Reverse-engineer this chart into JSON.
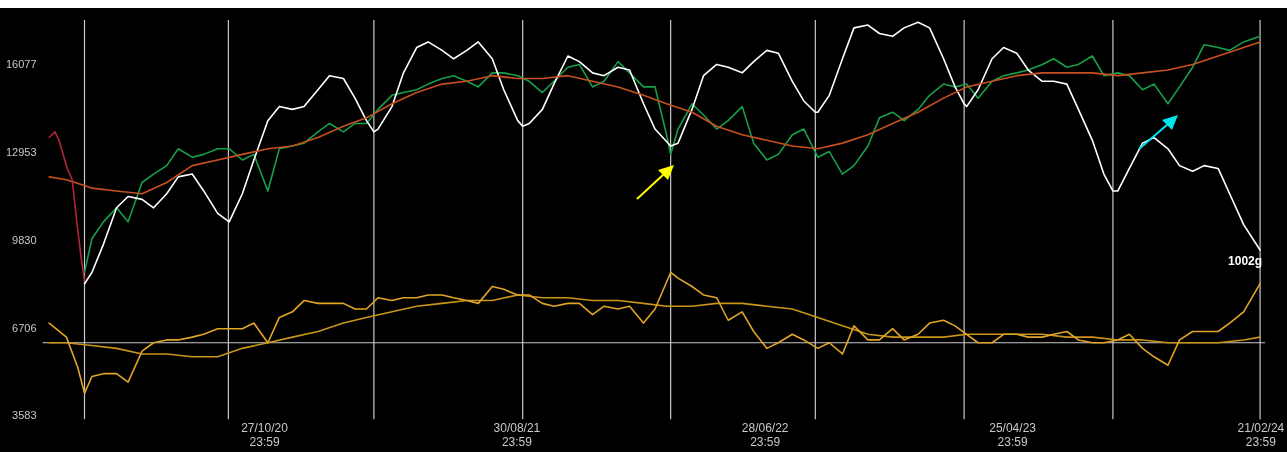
{
  "chart_data": {
    "type": "line",
    "grid": false,
    "legend": false,
    "marker": "none",
    "line_style": "solid",
    "xlim": [
      "2020-02-01",
      "2024-02-27"
    ],
    "xticks": [
      {
        "value": "2020-10-27T23:59",
        "label": "27/10/20 23:59"
      },
      {
        "value": "2021-08-30T23:59",
        "label": "30/08/21 23:59"
      },
      {
        "value": "2022-06-28T23:59",
        "label": "28/06/22 23:59"
      },
      {
        "value": "2023-04-25T23:59",
        "label": "25/04/23 23:59"
      },
      {
        "value": "2024-02-21T23:59",
        "label": "21/02/24 23:59"
      }
    ],
    "ylim": [
      3480,
      17680
    ],
    "yticks": [
      3583,
      6706,
      9830,
      12953,
      16077
    ],
    "ref_lines": [
      {
        "axis": "x",
        "value": "2020-03-23",
        "color": "#c8c8c8"
      },
      {
        "axis": "x",
        "value": "2020-09-14",
        "color": "#c8c8c8"
      },
      {
        "axis": "x",
        "value": "2021-03-10",
        "color": "#c8c8c8"
      },
      {
        "axis": "x",
        "value": "2021-09-07",
        "color": "#c8c8c8"
      },
      {
        "axis": "x",
        "value": "2022-03-06",
        "color": "#c8c8c8"
      },
      {
        "axis": "x",
        "value": "2022-08-29",
        "color": "#c8c8c8"
      },
      {
        "axis": "x",
        "value": "2023-02-26",
        "color": "#c8c8c8"
      },
      {
        "axis": "x",
        "value": "2023-08-26",
        "color": "#c8c8c8"
      },
      {
        "axis": "x",
        "value": "2024-02-21",
        "color": "#c8c8c8"
      },
      {
        "axis": "y",
        "value": 6200,
        "color": "#c8c8c8"
      }
    ],
    "annotations": [
      {
        "text": "1002g",
        "x": "2024-02-21",
        "y": 9100
      }
    ],
    "series": [
      {
        "type": "line",
        "color": "#b0243a",
        "x": [
          "2020-02-09",
          "2020-02-16",
          "2020-02-21",
          "2020-03-02",
          "2020-03-08",
          "2020-03-14",
          "2020-03-19",
          "2020-03-23"
        ],
        "values": [
          13500,
          13700,
          13400,
          12400,
          12000,
          10400,
          9200,
          8400
        ]
      },
      {
        "type": "line",
        "color": "#c8501e",
        "x": [
          "2020-02-09",
          "2020-03-01",
          "2020-04-01",
          "2020-05-01",
          "2020-06-01",
          "2020-07-01",
          "2020-08-01",
          "2020-09-01",
          "2020-10-01",
          "2020-11-01",
          "2020-12-01",
          "2021-01-01",
          "2021-02-01",
          "2021-03-01",
          "2021-04-01",
          "2021-05-01",
          "2021-06-01",
          "2021-07-01",
          "2021-08-01",
          "2021-09-01",
          "2021-10-01",
          "2021-11-01",
          "2021-12-01",
          "2022-01-01",
          "2022-02-01",
          "2022-03-01",
          "2022-04-01",
          "2022-05-01",
          "2022-06-01",
          "2022-07-01",
          "2022-08-01",
          "2022-09-01",
          "2022-10-01",
          "2022-11-01",
          "2022-12-01",
          "2023-01-01",
          "2023-02-01",
          "2023-03-01",
          "2023-04-01",
          "2023-05-01",
          "2023-06-01",
          "2023-07-01",
          "2023-08-01",
          "2023-09-01",
          "2023-10-01",
          "2023-11-01",
          "2023-12-01",
          "2024-01-01",
          "2024-02-01",
          "2024-02-21"
        ],
        "values": [
          12100,
          12000,
          11700,
          11600,
          11500,
          11900,
          12500,
          12700,
          12900,
          13100,
          13200,
          13500,
          13900,
          14200,
          14700,
          15100,
          15400,
          15500,
          15700,
          15600,
          15600,
          15700,
          15500,
          15300,
          15000,
          14700,
          14400,
          13900,
          13600,
          13400,
          13200,
          13100,
          13300,
          13600,
          14000,
          14400,
          14900,
          15300,
          15500,
          15700,
          15800,
          15800,
          15800,
          15700,
          15800,
          15900,
          16100,
          16400,
          16700,
          16900
        ]
      },
      {
        "type": "line",
        "color": "#ffffff",
        "x": [
          "2020-03-23",
          "2020-04-01",
          "2020-04-15",
          "2020-05-01",
          "2020-05-15",
          "2020-06-01",
          "2020-06-15",
          "2020-07-01",
          "2020-07-15",
          "2020-08-01",
          "2020-08-15",
          "2020-09-01",
          "2020-09-15",
          "2020-10-01",
          "2020-10-15",
          "2020-11-01",
          "2020-11-15",
          "2020-12-01",
          "2020-12-15",
          "2021-01-01",
          "2021-01-15",
          "2021-02-01",
          "2021-02-15",
          "2021-03-01",
          "2021-03-10",
          "2021-03-15",
          "2021-04-01",
          "2021-04-15",
          "2021-05-01",
          "2021-05-15",
          "2021-06-01",
          "2021-06-15",
          "2021-07-01",
          "2021-07-15",
          "2021-08-01",
          "2021-08-15",
          "2021-09-01",
          "2021-09-07",
          "2021-09-15",
          "2021-10-01",
          "2021-10-15",
          "2021-11-01",
          "2021-11-15",
          "2021-12-01",
          "2021-12-15",
          "2022-01-01",
          "2022-01-15",
          "2022-02-01",
          "2022-02-15",
          "2022-03-06",
          "2022-03-15",
          "2022-04-01",
          "2022-04-15",
          "2022-05-01",
          "2022-05-15",
          "2022-06-01",
          "2022-06-15",
          "2022-07-01",
          "2022-07-15",
          "2022-08-01",
          "2022-08-15",
          "2022-08-29",
          "2022-09-01",
          "2022-09-15",
          "2022-10-01",
          "2022-10-15",
          "2022-11-01",
          "2022-11-15",
          "2022-12-01",
          "2022-12-15",
          "2023-01-01",
          "2023-01-15",
          "2023-02-01",
          "2023-02-15",
          "2023-02-26",
          "2023-03-01",
          "2023-03-15",
          "2023-04-01",
          "2023-04-15",
          "2023-05-01",
          "2023-05-15",
          "2023-06-01",
          "2023-06-15",
          "2023-07-01",
          "2023-07-15",
          "2023-08-01",
          "2023-08-15",
          "2023-08-26",
          "2023-09-01",
          "2023-09-15",
          "2023-10-01",
          "2023-10-15",
          "2023-11-01",
          "2023-11-15",
          "2023-12-01",
          "2023-12-15",
          "2024-01-01",
          "2024-01-15",
          "2024-02-01",
          "2024-02-21"
        ],
        "values": [
          8300,
          8700,
          9700,
          11000,
          11400,
          11300,
          11000,
          11500,
          12100,
          12200,
          11600,
          10800,
          10500,
          11500,
          12700,
          14100,
          14600,
          14500,
          14600,
          15200,
          15700,
          15600,
          14900,
          14100,
          13700,
          13800,
          14600,
          15800,
          16700,
          16900,
          16600,
          16300,
          16600,
          16900,
          16300,
          15200,
          14100,
          13900,
          14000,
          14500,
          15400,
          16400,
          16200,
          15800,
          15700,
          16000,
          15900,
          14700,
          13800,
          13200,
          13300,
          14500,
          15700,
          16100,
          16000,
          15800,
          16200,
          16600,
          16500,
          15500,
          14800,
          14400,
          14400,
          15000,
          16300,
          17400,
          17500,
          17200,
          17100,
          17400,
          17600,
          17400,
          16300,
          15300,
          14700,
          14600,
          15200,
          16300,
          16700,
          16500,
          15900,
          15500,
          15500,
          15400,
          14500,
          13400,
          12200,
          11600,
          11600,
          12400,
          13300,
          13500,
          13100,
          12500,
          12300,
          12500,
          12400,
          11500,
          10400,
          9500
        ]
      },
      {
        "type": "line",
        "color": "#16a04a",
        "x": [
          "2020-03-23",
          "2020-04-01",
          "2020-04-15",
          "2020-05-01",
          "2020-05-15",
          "2020-06-01",
          "2020-06-15",
          "2020-07-01",
          "2020-07-15",
          "2020-08-01",
          "2020-08-15",
          "2020-09-01",
          "2020-09-15",
          "2020-10-01",
          "2020-10-15",
          "2020-11-01",
          "2020-11-15",
          "2020-12-01",
          "2020-12-15",
          "2021-01-01",
          "2021-01-15",
          "2021-02-01",
          "2021-02-15",
          "2021-03-01",
          "2021-03-15",
          "2021-04-01",
          "2021-04-15",
          "2021-05-01",
          "2021-05-15",
          "2021-06-01",
          "2021-06-15",
          "2021-07-01",
          "2021-07-15",
          "2021-08-01",
          "2021-08-15",
          "2021-09-01",
          "2021-09-15",
          "2021-10-01",
          "2021-10-15",
          "2021-11-01",
          "2021-11-15",
          "2021-12-01",
          "2021-12-15",
          "2022-01-01",
          "2022-01-15",
          "2022-02-01",
          "2022-02-15",
          "2022-03-01",
          "2022-03-06",
          "2022-03-15",
          "2022-04-01",
          "2022-04-15",
          "2022-05-01",
          "2022-05-15",
          "2022-06-01",
          "2022-06-15",
          "2022-07-01",
          "2022-07-15",
          "2022-08-01",
          "2022-08-15",
          "2022-09-01",
          "2022-09-15",
          "2022-10-01",
          "2022-10-15",
          "2022-11-01",
          "2022-11-15",
          "2022-12-01",
          "2022-12-15",
          "2023-01-01",
          "2023-01-15",
          "2023-02-01",
          "2023-02-15",
          "2023-03-01",
          "2023-03-15",
          "2023-04-01",
          "2023-04-15",
          "2023-05-01",
          "2023-05-15",
          "2023-06-01",
          "2023-06-15",
          "2023-07-01",
          "2023-07-15",
          "2023-08-01",
          "2023-08-15",
          "2023-09-01",
          "2023-09-15",
          "2023-10-01",
          "2023-10-15",
          "2023-11-01",
          "2023-11-15",
          "2023-12-01",
          "2023-12-15",
          "2024-01-01",
          "2024-01-15",
          "2024-02-01",
          "2024-02-21"
        ],
        "values": [
          8700,
          9900,
          10500,
          11000,
          10500,
          11900,
          12200,
          12500,
          13100,
          12800,
          12900,
          13100,
          13100,
          12700,
          12900,
          11600,
          13100,
          13200,
          13300,
          13700,
          14000,
          13700,
          14000,
          14000,
          14500,
          15000,
          15100,
          15200,
          15400,
          15600,
          15700,
          15500,
          15300,
          15800,
          15800,
          15700,
          15500,
          15100,
          15500,
          16000,
          16100,
          15300,
          15500,
          16200,
          15800,
          15300,
          15300,
          13600,
          12900,
          13800,
          14700,
          14300,
          13800,
          14100,
          14600,
          13300,
          12700,
          12900,
          13600,
          13800,
          12800,
          13000,
          12200,
          12500,
          13200,
          14200,
          14400,
          14100,
          14500,
          15000,
          15400,
          15300,
          15400,
          14900,
          15500,
          15700,
          15800,
          15900,
          16100,
          16300,
          16000,
          16100,
          16400,
          15700,
          15800,
          15700,
          15200,
          15400,
          14700,
          15300,
          16000,
          16800,
          16700,
          16600,
          16900,
          17100
        ]
      },
      {
        "type": "line",
        "color": "#e0a526",
        "x": [
          "2020-02-09",
          "2020-03-01",
          "2020-03-15",
          "2020-03-23",
          "2020-04-01",
          "2020-04-15",
          "2020-05-01",
          "2020-05-15",
          "2020-06-01",
          "2020-06-15",
          "2020-07-01",
          "2020-07-15",
          "2020-08-01",
          "2020-08-15",
          "2020-09-01",
          "2020-09-15",
          "2020-10-01",
          "2020-10-15",
          "2020-11-01",
          "2020-11-15",
          "2020-12-01",
          "2020-12-15",
          "2021-01-01",
          "2021-01-15",
          "2021-02-01",
          "2021-02-15",
          "2021-03-01",
          "2021-03-15",
          "2021-04-01",
          "2021-04-15",
          "2021-05-01",
          "2021-05-15",
          "2021-06-01",
          "2021-06-15",
          "2021-07-01",
          "2021-07-15",
          "2021-08-01",
          "2021-08-15",
          "2021-09-01",
          "2021-09-15",
          "2021-10-01",
          "2021-10-15",
          "2021-11-01",
          "2021-11-15",
          "2021-12-01",
          "2021-12-15",
          "2022-01-01",
          "2022-01-15",
          "2022-02-01",
          "2022-02-15",
          "2022-03-06",
          "2022-03-15",
          "2022-04-01",
          "2022-04-15",
          "2022-05-01",
          "2022-05-15",
          "2022-06-01",
          "2022-06-15",
          "2022-07-01",
          "2022-07-15",
          "2022-08-01",
          "2022-08-15",
          "2022-09-01",
          "2022-09-15",
          "2022-10-01",
          "2022-10-15",
          "2022-11-01",
          "2022-11-15",
          "2022-12-01",
          "2022-12-15",
          "2023-01-01",
          "2023-01-15",
          "2023-02-01",
          "2023-02-15",
          "2023-03-01",
          "2023-03-15",
          "2023-04-01",
          "2023-04-15",
          "2023-05-01",
          "2023-05-15",
          "2023-06-01",
          "2023-06-15",
          "2023-07-01",
          "2023-07-15",
          "2023-08-01",
          "2023-08-15",
          "2023-09-01",
          "2023-09-15",
          "2023-10-01",
          "2023-10-15",
          "2023-11-01",
          "2023-11-15",
          "2023-12-01",
          "2023-12-15",
          "2024-01-01",
          "2024-01-15",
          "2024-02-01",
          "2024-02-21"
        ],
        "values": [
          6900,
          6400,
          5300,
          4400,
          5000,
          5100,
          5100,
          4800,
          5900,
          6200,
          6300,
          6300,
          6400,
          6500,
          6700,
          6700,
          6700,
          6900,
          6200,
          7100,
          7300,
          7700,
          7600,
          7600,
          7600,
          7400,
          7400,
          7800,
          7700,
          7800,
          7800,
          7900,
          7900,
          7800,
          7700,
          7600,
          8200,
          8100,
          7900,
          7900,
          7600,
          7500,
          7600,
          7600,
          7200,
          7500,
          7400,
          7500,
          6900,
          7400,
          8700,
          8500,
          8200,
          7900,
          7800,
          7000,
          7300,
          6600,
          6000,
          6200,
          6500,
          6300,
          6000,
          6200,
          5800,
          6800,
          6300,
          6300,
          6700,
          6300,
          6500,
          6900,
          7000,
          6800,
          6500,
          6200,
          6200,
          6500,
          6500,
          6400,
          6400,
          6500,
          6600,
          6300,
          6200,
          6200,
          6300,
          6500,
          6000,
          5700,
          5400,
          6300,
          6600,
          6600,
          6600,
          6900,
          7300,
          8300
        ]
      },
      {
        "type": "line",
        "color": "#c99418",
        "x": [
          "2020-02-09",
          "2020-03-01",
          "2020-04-01",
          "2020-05-01",
          "2020-06-01",
          "2020-07-01",
          "2020-08-01",
          "2020-09-01",
          "2020-10-01",
          "2020-11-01",
          "2020-12-01",
          "2021-01-01",
          "2021-02-01",
          "2021-03-01",
          "2021-04-01",
          "2021-05-01",
          "2021-06-01",
          "2021-07-01",
          "2021-08-01",
          "2021-09-01",
          "2021-10-01",
          "2021-11-01",
          "2021-12-01",
          "2022-01-01",
          "2022-02-01",
          "2022-03-01",
          "2022-04-01",
          "2022-05-01",
          "2022-06-01",
          "2022-07-01",
          "2022-08-01",
          "2022-09-01",
          "2022-10-01",
          "2022-11-01",
          "2022-12-01",
          "2023-01-01",
          "2023-02-01",
          "2023-03-01",
          "2023-04-01",
          "2023-05-01",
          "2023-06-01",
          "2023-07-01",
          "2023-08-01",
          "2023-09-01",
          "2023-10-01",
          "2023-11-01",
          "2023-12-01",
          "2024-01-01",
          "2024-02-01",
          "2024-02-21"
        ],
        "values": [
          6200,
          6200,
          6100,
          6000,
          5800,
          5800,
          5700,
          5700,
          6000,
          6200,
          6400,
          6600,
          6900,
          7100,
          7300,
          7500,
          7600,
          7700,
          7700,
          7900,
          7800,
          7800,
          7700,
          7700,
          7600,
          7500,
          7500,
          7600,
          7600,
          7500,
          7400,
          7100,
          6800,
          6500,
          6400,
          6400,
          6400,
          6500,
          6500,
          6500,
          6500,
          6400,
          6400,
          6300,
          6300,
          6200,
          6200,
          6200,
          6300,
          6400
        ]
      }
    ]
  }
}
